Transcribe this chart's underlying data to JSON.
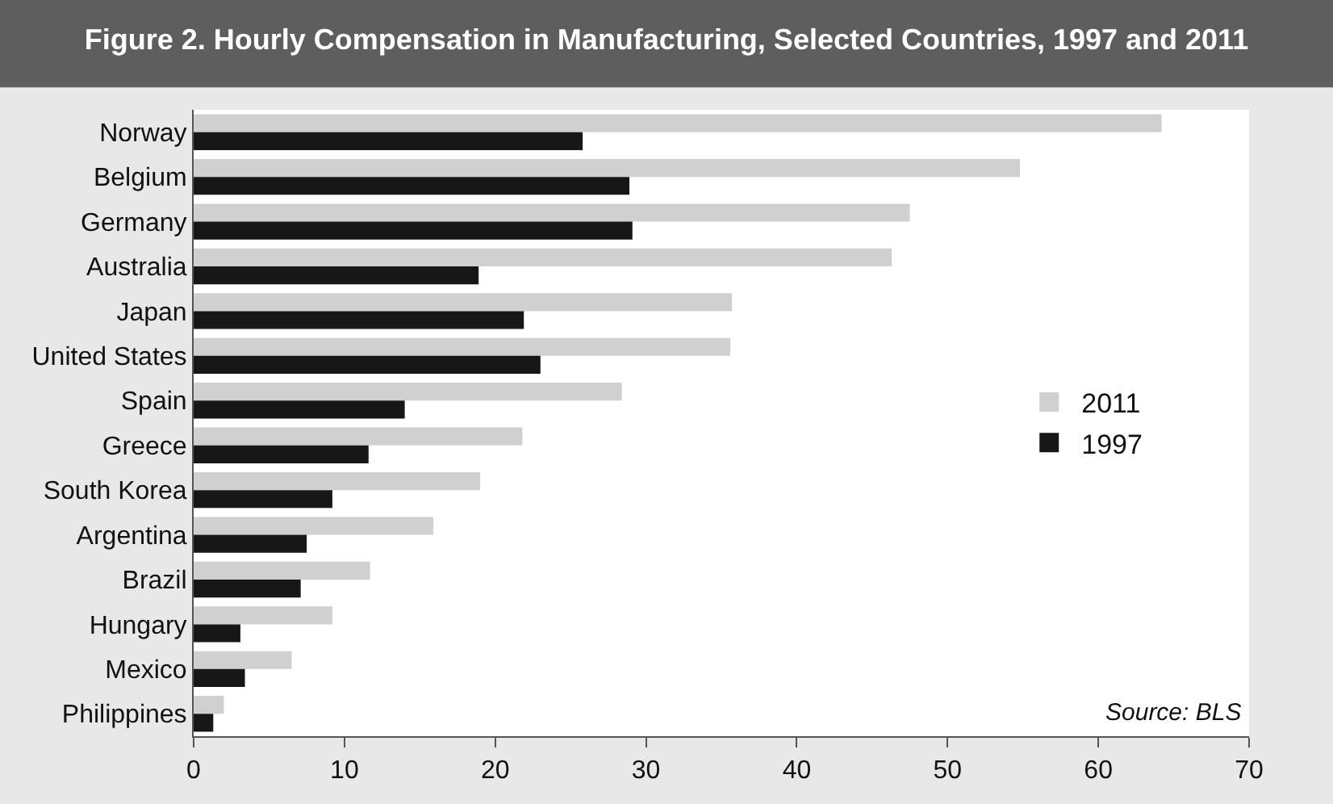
{
  "chart_data": {
    "type": "bar",
    "orientation": "horizontal",
    "title": "Figure 2. Hourly Compensation in Manufacturing, Selected Countries, 1997 and 2011",
    "categories": [
      "Norway",
      "Belgium",
      "Germany",
      "Australia",
      "Japan",
      "United States",
      "Spain",
      "Greece",
      "South Korea",
      "Argentina",
      "Brazil",
      "Hungary",
      "Mexico",
      "Philippines"
    ],
    "series": [
      {
        "name": "2011",
        "color": "#cfd0cf",
        "values": [
          64.2,
          54.8,
          47.5,
          46.3,
          35.7,
          35.6,
          28.4,
          21.8,
          19.0,
          15.9,
          11.7,
          9.2,
          6.5,
          2.0
        ]
      },
      {
        "name": "1997",
        "color": "#171717",
        "values": [
          25.8,
          28.9,
          29.1,
          18.9,
          21.9,
          23.0,
          14.0,
          11.6,
          9.2,
          7.5,
          7.1,
          3.1,
          3.4,
          1.3
        ]
      }
    ],
    "xlim": [
      0,
      70
    ],
    "xticks": [
      0,
      10,
      20,
      30,
      40,
      50,
      60,
      70
    ],
    "annotations": [
      "Source: BLS"
    ],
    "legend": "right"
  }
}
